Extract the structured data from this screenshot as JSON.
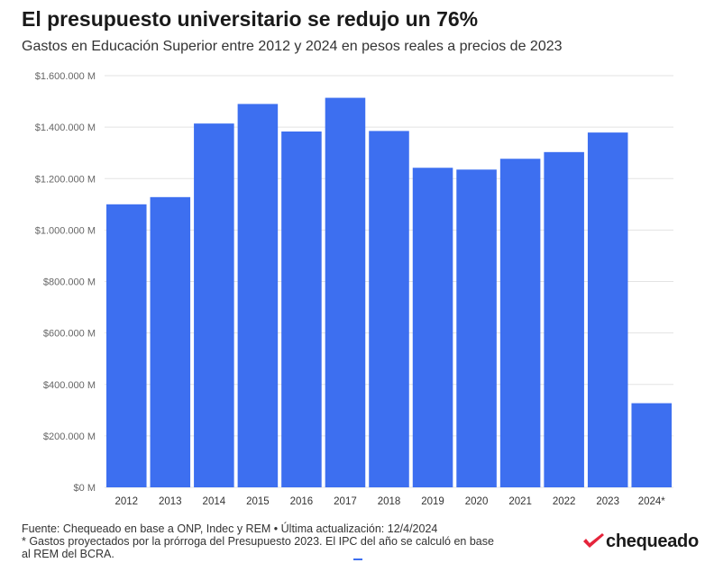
{
  "header": {
    "title": "El presupuesto universitario se redujo un 76%",
    "subtitle": "Gastos en Educación Superior entre 2012 y 2024 en pesos reales a precios de 2023"
  },
  "chart_data": {
    "type": "bar",
    "title": "El presupuesto universitario se redujo un 76%",
    "subtitle": "Gastos en Educación Superior entre 2012 y 2024 en pesos reales a precios de 2023",
    "xlabel": "",
    "ylabel": "",
    "categories": [
      "2012",
      "2013",
      "2014",
      "2015",
      "2016",
      "2017",
      "2018",
      "2019",
      "2020",
      "2021",
      "2022",
      "2023",
      "2024*"
    ],
    "values": [
      1100000,
      1128000,
      1414000,
      1490000,
      1383000,
      1514000,
      1385000,
      1242000,
      1235000,
      1277000,
      1303000,
      1379000,
      327000
    ],
    "ylim": [
      0,
      1600000
    ],
    "yticks": [
      0,
      200000,
      400000,
      600000,
      800000,
      1000000,
      1200000,
      1400000,
      1600000
    ],
    "ytick_labels": [
      "$0 M",
      "$200.000 M",
      "$400.000 M",
      "$600.000 M",
      "$800.000 M",
      "$1.000.000 M",
      "$1.200.000 M",
      "$1.400.000 M",
      "$1.600.000 M"
    ],
    "grid": true,
    "legend": "none",
    "bar_color": "#3d6ff0"
  },
  "footer": {
    "source": "Fuente: Chequeado en base a ONP, Indec y REM • Última actualización: 12/4/2024",
    "note_line1": "* Gastos proyectados por la prórroga del Presupuesto 2023. El IPC del año se calculó en base",
    "note_line2": "al REM del BCRA."
  },
  "logo": {
    "text": "chequeado",
    "icon": "check-mark-icon",
    "color": "#e5243b"
  }
}
